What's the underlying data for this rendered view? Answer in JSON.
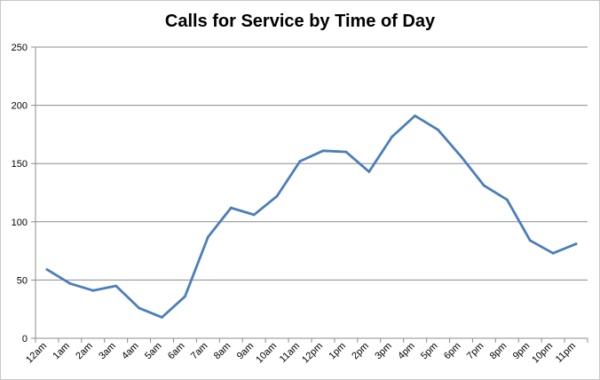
{
  "chart_data": {
    "type": "line",
    "title": "Calls for Service by Time of Day",
    "xlabel": "",
    "ylabel": "",
    "categories": [
      "12am",
      "1am",
      "2am",
      "3am",
      "4am",
      "5am",
      "6am",
      "7am",
      "8am",
      "9am",
      "10am",
      "11am",
      "12pm",
      "1pm",
      "2pm",
      "3pm",
      "4pm",
      "5pm",
      "6pm",
      "7pm",
      "8pm",
      "9pm",
      "10pm",
      "11pm"
    ],
    "series": [
      {
        "values": [
          59,
          47,
          41,
          45,
          26,
          18,
          36,
          87,
          112,
          106,
          122,
          152,
          161,
          160,
          143,
          173,
          191,
          179,
          156,
          131,
          119,
          84,
          73,
          81
        ]
      }
    ],
    "ylim": [
      0,
      250
    ],
    "yticks": [
      0,
      50,
      100,
      150,
      200,
      250
    ],
    "grid": true,
    "legend": "none",
    "colors": {
      "line": "#4a7ebb",
      "grid": "#8c8c8c",
      "axis": "#8c8c8c"
    }
  }
}
